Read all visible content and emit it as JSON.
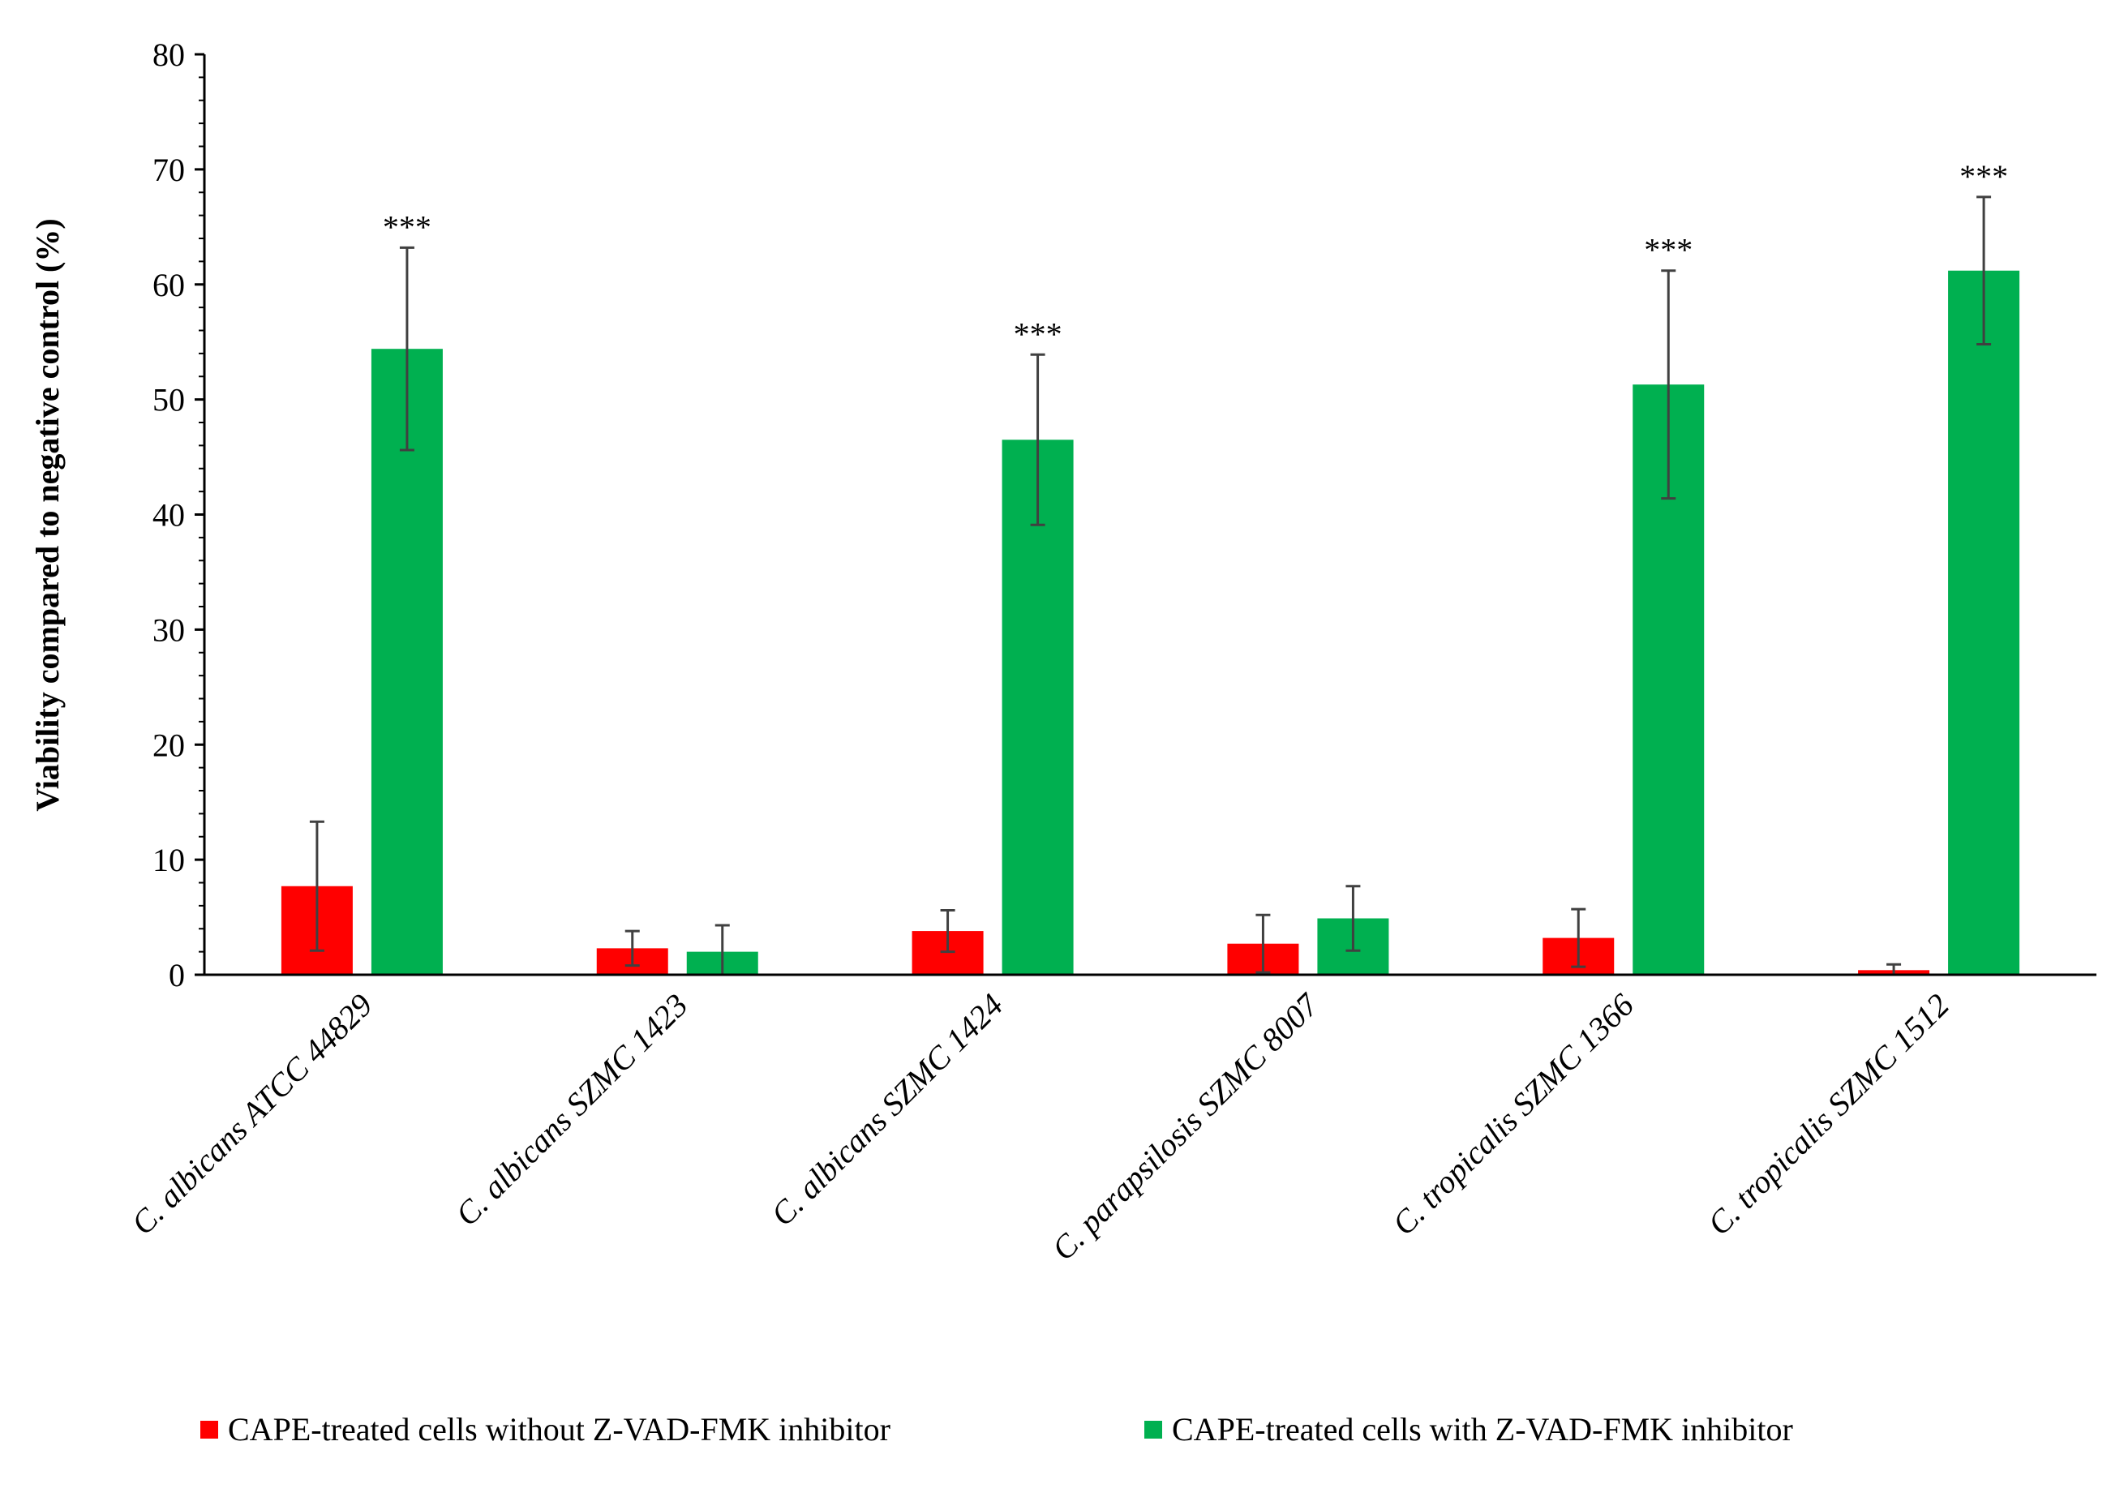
{
  "chart_data": {
    "type": "bar",
    "title": "",
    "xlabel": "",
    "ylabel": "Viability compared to negative control (%)",
    "ylim": [
      0,
      80
    ],
    "yticks": [
      0,
      10,
      20,
      30,
      40,
      50,
      60,
      70,
      80
    ],
    "categories": [
      "C. albicans ATCC 44829",
      "C. albicans SZMC 1423",
      "C. albicans SZMC 1424",
      "C. parapsilosis SZMC 8007",
      "C. tropicalis SZMC 1366",
      "C. tropicalis SZMC 1512"
    ],
    "series": [
      {
        "name": "CAPE-treated cells without Z-VAD-FMK inhibitor",
        "color": "#ff0000",
        "values": [
          7.7,
          2.3,
          3.8,
          2.7,
          3.2,
          0.4
        ],
        "errors": [
          5.6,
          1.5,
          1.8,
          2.5,
          2.5,
          0.5
        ]
      },
      {
        "name": "CAPE-treated cells with Z-VAD-FMK inhibitor",
        "color": "#00b050",
        "values": [
          54.4,
          2.0,
          46.5,
          4.9,
          51.3,
          61.2
        ],
        "errors": [
          8.8,
          2.3,
          7.4,
          2.8,
          9.9,
          6.4
        ]
      }
    ],
    "significance": [
      "***",
      "",
      "***",
      "",
      "***",
      "***"
    ],
    "legend_position": "bottom"
  }
}
